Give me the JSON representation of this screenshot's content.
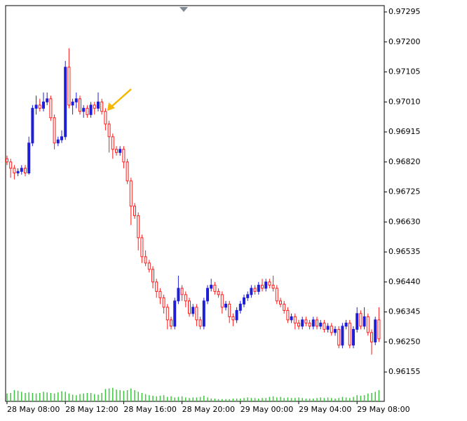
{
  "chart_data": {
    "type": "candlestick",
    "bull_color": "#1f1fd6",
    "bear_color": "#ff1a1a",
    "volume_color": "#3cc83c",
    "ylim": [
      0.96062,
      0.97315
    ],
    "yticks": [
      0.97295,
      {
        "value": 0.972,
        "label": "0.97200"
      },
      0.97105,
      {
        "value": 0.9701,
        "label": "0.97010"
      },
      0.96915,
      {
        "value": 0.9682,
        "label": "0.96820"
      },
      0.96725,
      {
        "value": 0.9663,
        "label": "0.96630"
      },
      0.96535,
      {
        "value": 0.9644,
        "label": "0.96440"
      },
      0.96345,
      {
        "value": 0.9625,
        "label": "0.96250"
      },
      0.96155
    ],
    "xticks": [
      {
        "value": 0,
        "label": "28 May 08:00"
      },
      {
        "value": 16,
        "label": "28 May 12:00"
      },
      {
        "value": 32,
        "label": "28 May 16:00"
      },
      {
        "value": 48,
        "label": "28 May 20:00"
      },
      {
        "value": 64,
        "label": "29 May 00:00"
      },
      {
        "value": 80,
        "label": "29 May 04:00"
      },
      {
        "value": 96,
        "label": "29 May 08:00"
      }
    ],
    "open": [
      0.9683,
      0.9682,
      0.968,
      0.96785,
      0.9679,
      0.968,
      0.96785,
      0.9688,
      0.9699,
      0.97,
      0.9699,
      0.9701,
      0.9702,
      0.9696,
      0.9688,
      0.9689,
      0.969,
      0.9712,
      0.97,
      0.9701,
      0.9702,
      0.9698,
      0.9699,
      0.9697,
      0.97,
      0.9699,
      0.9701,
      0.9698,
      0.9694,
      0.969,
      0.9686,
      0.9685,
      0.9686,
      0.9682,
      0.9676,
      0.9668,
      0.9665,
      0.9658,
      0.9652,
      0.965,
      0.9648,
      0.9644,
      0.9641,
      0.9639,
      0.9636,
      0.9632,
      0.963,
      0.9638,
      0.9642,
      0.964,
      0.9638,
      0.9634,
      0.9636,
      0.9632,
      0.963,
      0.9638,
      0.9642,
      0.9643,
      0.9641,
      0.964,
      0.9636,
      0.9637,
      0.9633,
      0.9632,
      0.9635,
      0.9637,
      0.9639,
      0.964,
      0.9642,
      0.9641,
      0.9643,
      0.9642,
      0.9644,
      0.9643,
      0.9642,
      0.9638,
      0.9637,
      0.9635,
      0.9632,
      0.9633,
      0.9631,
      0.963,
      0.9632,
      0.9631,
      0.963,
      0.9632,
      0.963,
      0.9631,
      0.9629,
      0.963,
      0.9628,
      0.9629,
      0.9624,
      0.963,
      0.9631,
      0.9624,
      0.9629,
      0.9634,
      0.963,
      0.9633,
      0.9628,
      0.9625,
      0.9632
    ],
    "high": [
      0.9684,
      0.9683,
      0.9681,
      0.968,
      0.9681,
      0.9681,
      0.969,
      0.97,
      0.9703,
      0.9702,
      0.9704,
      0.9704,
      0.9703,
      0.9697,
      0.969,
      0.9692,
      0.9714,
      0.9718,
      0.9702,
      0.9704,
      0.9703,
      0.97,
      0.97,
      0.9701,
      0.9701,
      0.9704,
      0.9702,
      0.9699,
      0.9695,
      0.9691,
      0.9687,
      0.9687,
      0.9687,
      0.9683,
      0.9677,
      0.9669,
      0.9666,
      0.9659,
      0.9654,
      0.9651,
      0.9649,
      0.9645,
      0.9642,
      0.964,
      0.9637,
      0.9633,
      0.9639,
      0.9646,
      0.9643,
      0.9641,
      0.9639,
      0.9637,
      0.9637,
      0.9633,
      0.9639,
      0.9643,
      0.9645,
      0.9644,
      0.9642,
      0.9641,
      0.9638,
      0.9638,
      0.9634,
      0.9636,
      0.9638,
      0.964,
      0.9641,
      0.9643,
      0.9643,
      0.9644,
      0.9645,
      0.9645,
      0.9645,
      0.9646,
      0.9643,
      0.9639,
      0.9638,
      0.9636,
      0.9634,
      0.9634,
      0.9632,
      0.9633,
      0.9633,
      0.9632,
      0.9633,
      0.9633,
      0.9632,
      0.9632,
      0.9631,
      0.9631,
      0.963,
      0.963,
      0.9631,
      0.9632,
      0.9632,
      0.963,
      0.9636,
      0.9635,
      0.9636,
      0.9634,
      0.9629,
      0.9633,
      0.9636
    ],
    "low": [
      0.9681,
      0.9677,
      0.96765,
      0.96775,
      0.9678,
      0.96775,
      0.9678,
      0.9687,
      0.9697,
      0.9698,
      0.9698,
      0.97,
      0.9695,
      0.9686,
      0.9687,
      0.9688,
      0.9689,
      0.9699,
      0.9697,
      0.9699,
      0.9697,
      0.9696,
      0.9696,
      0.9696,
      0.9697,
      0.9698,
      0.9697,
      0.9692,
      0.9685,
      0.9683,
      0.9684,
      0.9684,
      0.968,
      0.9675,
      0.9662,
      0.9664,
      0.9654,
      0.965,
      0.9649,
      0.9647,
      0.9642,
      0.9639,
      0.9637,
      0.9634,
      0.9629,
      0.9629,
      0.9629,
      0.9637,
      0.9638,
      0.9636,
      0.9633,
      0.9633,
      0.963,
      0.9629,
      0.9629,
      0.9637,
      0.9641,
      0.964,
      0.9639,
      0.9634,
      0.9635,
      0.9631,
      0.963,
      0.9631,
      0.9634,
      0.9636,
      0.9638,
      0.9639,
      0.964,
      0.964,
      0.9641,
      0.9641,
      0.9642,
      0.9641,
      0.9637,
      0.9636,
      0.9634,
      0.9631,
      0.9631,
      0.9629,
      0.9629,
      0.9629,
      0.963,
      0.9629,
      0.9629,
      0.9629,
      0.9629,
      0.9628,
      0.9628,
      0.9627,
      0.9627,
      0.9623,
      0.9623,
      0.9629,
      0.9623,
      0.9623,
      0.9628,
      0.9629,
      0.9629,
      0.9627,
      0.9621,
      0.9624,
      0.9625
    ],
    "close": [
      0.9682,
      0.968,
      0.96785,
      0.9679,
      0.968,
      0.96785,
      0.9688,
      0.9699,
      0.97,
      0.9699,
      0.9701,
      0.9702,
      0.9696,
      0.9688,
      0.9689,
      0.969,
      0.9712,
      0.97,
      0.9701,
      0.9702,
      0.9698,
      0.9699,
      0.9697,
      0.97,
      0.9699,
      0.9701,
      0.9698,
      0.9694,
      0.969,
      0.9686,
      0.9685,
      0.9686,
      0.9682,
      0.9676,
      0.9668,
      0.9665,
      0.9658,
      0.9652,
      0.965,
      0.9648,
      0.9644,
      0.9641,
      0.9639,
      0.9636,
      0.9632,
      0.963,
      0.9638,
      0.9642,
      0.964,
      0.9638,
      0.9634,
      0.9636,
      0.9632,
      0.963,
      0.9638,
      0.9642,
      0.9643,
      0.9641,
      0.964,
      0.9636,
      0.9637,
      0.9633,
      0.9632,
      0.9635,
      0.9637,
      0.9639,
      0.964,
      0.9642,
      0.9641,
      0.9643,
      0.9642,
      0.9644,
      0.9643,
      0.9642,
      0.9638,
      0.9637,
      0.9635,
      0.9632,
      0.9633,
      0.9631,
      0.963,
      0.9632,
      0.9631,
      0.963,
      0.9632,
      0.963,
      0.9631,
      0.9629,
      0.963,
      0.9628,
      0.9629,
      0.9624,
      0.963,
      0.9631,
      0.9624,
      0.9629,
      0.9634,
      0.963,
      0.9633,
      0.9628,
      0.9625,
      0.9632,
      0.9626
    ],
    "volume_lim": [
      0,
      100
    ],
    "volume": [
      28,
      30,
      40,
      38,
      34,
      30,
      32,
      30,
      28,
      30,
      34,
      32,
      30,
      28,
      32,
      36,
      34,
      28,
      24,
      22,
      26,
      28,
      30,
      30,
      26,
      24,
      30,
      44,
      46,
      48,
      42,
      40,
      38,
      40,
      46,
      40,
      34,
      30,
      26,
      22,
      20,
      18,
      20,
      22,
      16,
      18,
      14,
      16,
      18,
      14,
      12,
      14,
      14,
      16,
      20,
      14,
      10,
      10,
      8,
      8,
      8,
      8,
      10,
      10,
      10,
      12,
      14,
      12,
      12,
      10,
      12,
      12,
      16,
      18,
      14,
      16,
      12,
      14,
      12,
      12,
      14,
      12,
      10,
      10,
      10,
      12,
      14,
      12,
      14,
      12,
      10,
      12,
      16,
      14,
      12,
      16,
      22,
      20,
      22,
      28,
      30,
      34,
      40
    ]
  }
}
